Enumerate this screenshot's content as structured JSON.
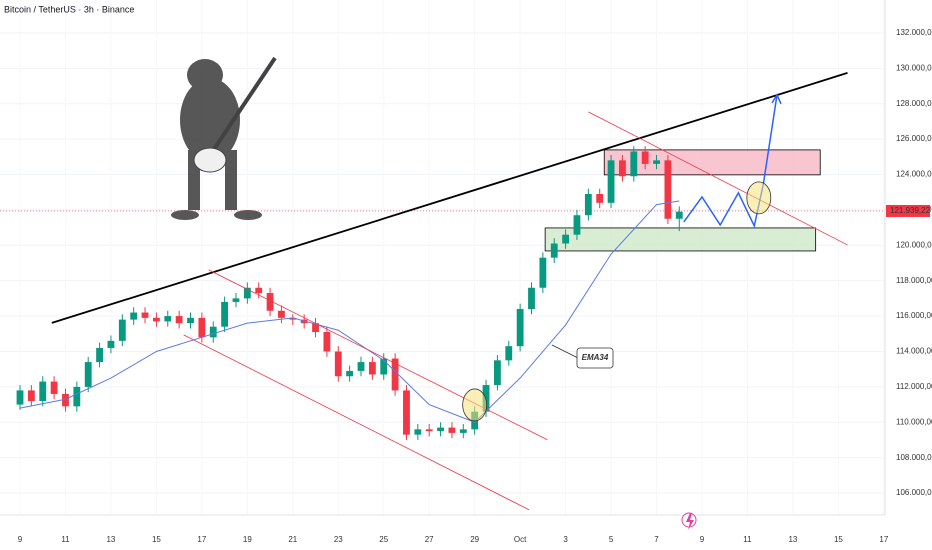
{
  "chart_data": {
    "type": "candlestick",
    "title": "Bitcoin / TetherUS · 3h · Binance",
    "x": [
      0,
      0.5,
      1,
      1.5,
      2,
      2.5,
      3,
      3.5,
      4,
      4.5,
      5,
      5.5,
      6,
      6.5,
      7,
      7.5,
      8,
      8.5,
      9,
      9.5,
      10,
      10.5,
      11,
      11.5,
      12,
      12.5,
      13,
      13.5,
      14,
      14.5,
      15,
      15.5,
      16,
      16.5,
      17,
      17.5,
      18,
      18.5,
      19,
      19.5,
      20,
      20.5,
      21,
      21.5,
      22,
      22.5,
      23,
      23.5,
      24,
      24.5,
      25,
      25.5,
      26,
      26.5,
      27,
      27.5,
      28,
      28.5,
      29
    ],
    "open": [
      111000,
      111800,
      111200,
      112300,
      111600,
      110900,
      112000,
      113400,
      114200,
      114600,
      115800,
      116200,
      115900,
      115700,
      116000,
      115600,
      115900,
      114800,
      115400,
      116800,
      117000,
      117600,
      117300,
      116300,
      115900,
      115800,
      115600,
      115100,
      114000,
      112600,
      112900,
      113400,
      112700,
      113600,
      111800,
      109300,
      109600,
      109500,
      109700,
      109400,
      109600,
      110600,
      112100,
      113500,
      114300,
      116400,
      117600,
      119300,
      120100,
      120600,
      121700,
      122900,
      122400,
      124800,
      123900,
      125300,
      124600,
      124800,
      121500
    ],
    "high": [
      112100,
      112100,
      112600,
      112600,
      111900,
      112300,
      113700,
      114500,
      114900,
      116100,
      116500,
      116500,
      116200,
      116300,
      116300,
      116200,
      116200,
      115700,
      117100,
      117300,
      117900,
      117900,
      117600,
      116600,
      116100,
      116100,
      115900,
      115400,
      114300,
      113200,
      113700,
      113700,
      113900,
      113900,
      112100,
      109900,
      109900,
      110000,
      110000,
      109900,
      110900,
      112400,
      113800,
      114600,
      116700,
      117900,
      119600,
      120400,
      120900,
      122000,
      123200,
      123200,
      125100,
      125100,
      125600,
      125600,
      125100,
      125100,
      122200
    ],
    "low": [
      110700,
      110900,
      110900,
      111300,
      110600,
      110600,
      111700,
      113100,
      113900,
      114300,
      115500,
      115600,
      115400,
      115400,
      115300,
      115300,
      114500,
      114500,
      115100,
      116500,
      116700,
      117000,
      116000,
      115600,
      115500,
      115300,
      114800,
      113700,
      112300,
      112300,
      112600,
      112400,
      112400,
      111500,
      109000,
      109000,
      109200,
      109200,
      109100,
      109100,
      109300,
      110300,
      111800,
      113200,
      114000,
      116100,
      117300,
      119000,
      119800,
      120300,
      121400,
      122100,
      122100,
      123600,
      123600,
      124300,
      124300,
      121200,
      120800
    ],
    "close": [
      111800,
      111200,
      112300,
      111600,
      110900,
      112000,
      113400,
      114200,
      114600,
      115800,
      116200,
      115900,
      115700,
      116000,
      115600,
      115900,
      114800,
      115400,
      116800,
      117000,
      117600,
      117300,
      116300,
      115900,
      115800,
      115600,
      115100,
      114000,
      112600,
      112900,
      113400,
      112700,
      113600,
      111800,
      109300,
      109600,
      109500,
      109700,
      109400,
      109600,
      110600,
      112100,
      113500,
      114300,
      116400,
      117600,
      119300,
      120100,
      120600,
      121700,
      122900,
      122400,
      124800,
      123900,
      125300,
      124600,
      124800,
      121500,
      121900
    ],
    "up_color": "#089981",
    "down_color": "#f23645",
    "ema": {
      "name": "EMA34",
      "color": "#5b7be0",
      "x": [
        0,
        2,
        4,
        6,
        8,
        10,
        12,
        14,
        16,
        18,
        20,
        22,
        24,
        26,
        28,
        29
      ],
      "values": [
        110800,
        111300,
        112500,
        114000,
        114800,
        115600,
        115900,
        115200,
        113500,
        111000,
        110000,
        112500,
        115500,
        119500,
        122300,
        122500
      ]
    },
    "last_price": {
      "value": 121939.22,
      "value_label": "121.939,22",
      "color": "#f23645"
    },
    "lines": [
      {
        "color": "#000000",
        "x": [
          1.4,
          36.4
        ],
        "y": [
          115616,
          129740
        ]
      },
      {
        "color": "#f23645",
        "x": [
          8.3,
          23.2
        ],
        "y": [
          118610,
          109010
        ]
      },
      {
        "color": "#f23645",
        "x": [
          7.2,
          22.4
        ],
        "y": [
          114940,
          105050
        ]
      },
      {
        "color": "#f23645",
        "x": [
          25,
          36.4
        ],
        "y": [
          127540,
          120020
        ]
      }
    ],
    "boxes": [
      {
        "color": "#f7b6c4",
        "x": [
          25.7,
          35.2
        ],
        "y": [
          125390,
          123980
        ]
      },
      {
        "color": "#cfe8c9",
        "x": [
          23.1,
          35.0
        ],
        "y": [
          120980,
          119680
        ]
      }
    ],
    "projection": {
      "color": "#2962ff",
      "x": [
        29.2,
        30.0,
        30.8,
        31.6,
        32.3,
        32.7,
        33.3
      ],
      "y": [
        121320,
        122730,
        121150,
        122960,
        121090,
        123470,
        128500
      ]
    },
    "circles": {
      "color": "#f5e27a",
      "x": [
        20.0,
        32.5
      ],
      "y": [
        110980,
        122680
      ]
    },
    "xlim": [
      -0.88,
      38.05
    ],
    "ylim": [
      104760,
      133860
    ],
    "grid": true,
    "xticks": [
      {
        "value": 0,
        "label": "9"
      },
      {
        "value": 2,
        "label": "11"
      },
      {
        "value": 4,
        "label": "13"
      },
      {
        "value": 6,
        "label": "15"
      },
      {
        "value": 8,
        "label": "17"
      },
      {
        "value": 10,
        "label": "19"
      },
      {
        "value": 12,
        "label": "21"
      },
      {
        "value": 14,
        "label": "23"
      },
      {
        "value": 16,
        "label": "25"
      },
      {
        "value": 18,
        "label": "27"
      },
      {
        "value": 20,
        "label": "29"
      },
      {
        "value": 22,
        "label": "Oct"
      },
      {
        "value": 24,
        "label": "3"
      },
      {
        "value": 26,
        "label": "5"
      },
      {
        "value": 28,
        "label": "7"
      },
      {
        "value": 30,
        "label": "9"
      },
      {
        "value": 32,
        "label": "11"
      },
      {
        "value": 34,
        "label": "13"
      },
      {
        "value": 36,
        "label": "15"
      },
      {
        "value": 38,
        "label": "17"
      }
    ],
    "yticks": [
      {
        "value": 106000,
        "label": "106.000,00"
      },
      {
        "value": 108000,
        "label": "108.000,00"
      },
      {
        "value": 110000,
        "label": "110.000,00"
      },
      {
        "value": 112000,
        "label": "112.000,00"
      },
      {
        "value": 114000,
        "label": "114.000,00"
      },
      {
        "value": 116000,
        "label": "116.000,00"
      },
      {
        "value": 118000,
        "label": "118.000,00"
      },
      {
        "value": 120000,
        "label": "120.000,00"
      },
      {
        "value": 122000,
        "label": "122.000,00"
      },
      {
        "value": 124000,
        "label": "124.000,00"
      },
      {
        "value": 126000,
        "label": "126.000,00"
      },
      {
        "value": 128000,
        "label": "128.000,00"
      },
      {
        "value": 130000,
        "label": "130.000,00"
      },
      {
        "value": 132000,
        "label": "132.000,00"
      }
    ]
  }
}
